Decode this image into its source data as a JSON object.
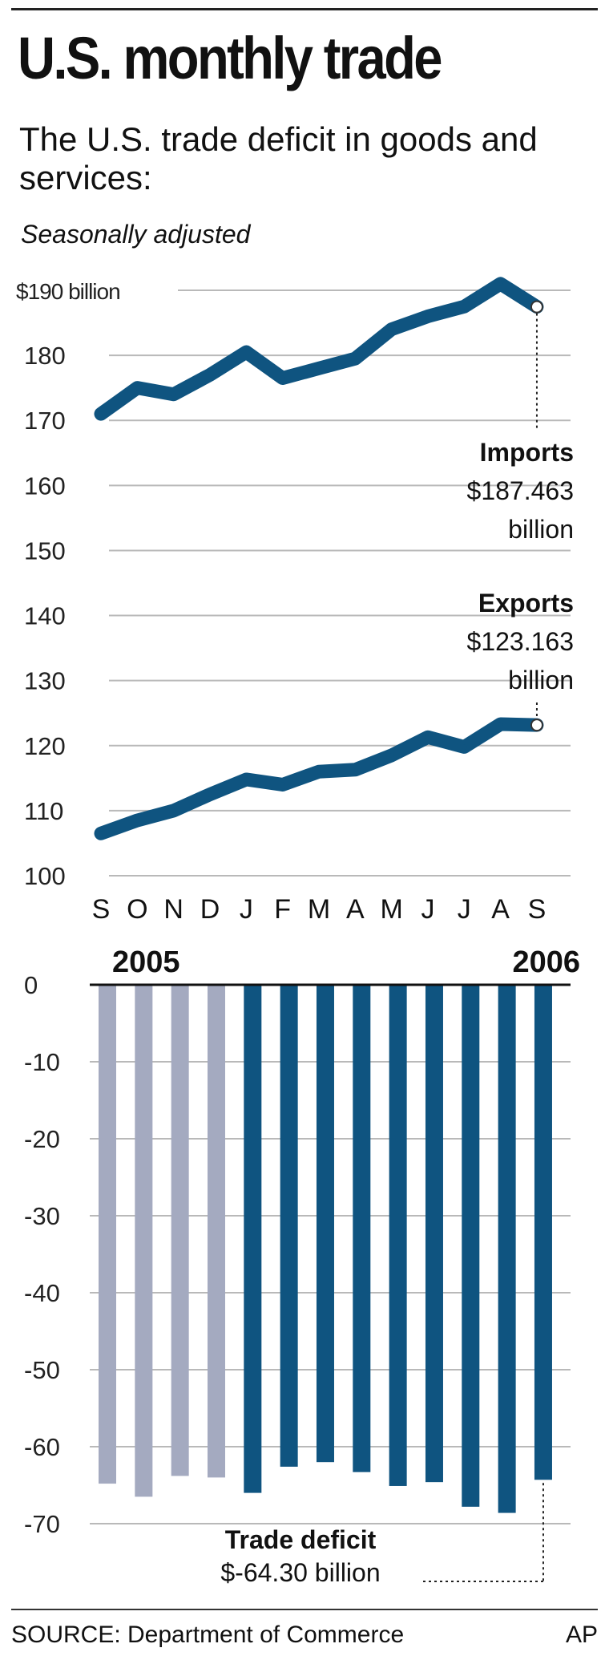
{
  "title": "U.S. monthly trade",
  "subtitle": "The U.S. trade deficit in goods and services:",
  "note": "Seasonally adjusted",
  "source": "SOURCE: Department of Commerce",
  "credit": "AP",
  "colors": {
    "line": "#0f5480",
    "bar_2005": "#a4aac0",
    "bar_2006": "#0f5480",
    "grid": "#b9b9b9"
  },
  "chart_data": [
    {
      "type": "line",
      "categories": [
        "S",
        "O",
        "N",
        "D",
        "J",
        "F",
        "M",
        "A",
        "M",
        "J",
        "J",
        "A",
        "S"
      ],
      "series": [
        {
          "name": "Imports",
          "values": [
            171.0,
            175.0,
            174.0,
            177.0,
            180.5,
            176.5,
            178.0,
            179.5,
            184.0,
            186.0,
            187.5,
            191.0,
            187.463
          ]
        },
        {
          "name": "Exports",
          "values": [
            106.5,
            108.5,
            110.0,
            112.5,
            114.8,
            114.0,
            116.0,
            116.3,
            118.5,
            121.3,
            119.8,
            123.3,
            123.163
          ]
        }
      ],
      "y_ticks": [
        "$190 billion",
        "180",
        "170",
        "160",
        "150",
        "140",
        "130",
        "120",
        "110",
        "100"
      ],
      "y_tick_values": [
        190,
        180,
        170,
        160,
        150,
        140,
        130,
        120,
        110,
        100
      ],
      "ylim": [
        100,
        190
      ],
      "grid": true,
      "annotations": [
        {
          "series": "Imports",
          "label": "Imports",
          "value_text": "$187.463",
          "unit": "billion"
        },
        {
          "series": "Exports",
          "label": "Exports",
          "value_text": "$123.163",
          "unit": "billion"
        }
      ]
    },
    {
      "type": "bar",
      "categories": [
        "S",
        "O",
        "N",
        "D",
        "J",
        "F",
        "M",
        "A",
        "M",
        "J",
        "J",
        "A",
        "S"
      ],
      "year_labels": [
        "2005",
        "2006"
      ],
      "series": [
        {
          "name": "Trade deficit",
          "values": [
            -64.8,
            -66.5,
            -63.8,
            -64.0,
            -66.0,
            -62.6,
            -62.0,
            -63.3,
            -65.1,
            -64.6,
            -67.8,
            -68.6,
            -64.3
          ]
        }
      ],
      "year_of_bar": [
        2005,
        2005,
        2005,
        2005,
        2006,
        2006,
        2006,
        2006,
        2006,
        2006,
        2006,
        2006,
        2006
      ],
      "y_ticks": [
        "0",
        "-10",
        "-20",
        "-30",
        "-40",
        "-50",
        "-60",
        "-70"
      ],
      "y_tick_values": [
        0,
        -10,
        -20,
        -30,
        -40,
        -50,
        -60,
        -70
      ],
      "ylim": [
        -70,
        0
      ],
      "grid": true,
      "annotation": {
        "label": "Trade deficit",
        "value_text": "$-64.30 billion"
      }
    }
  ]
}
